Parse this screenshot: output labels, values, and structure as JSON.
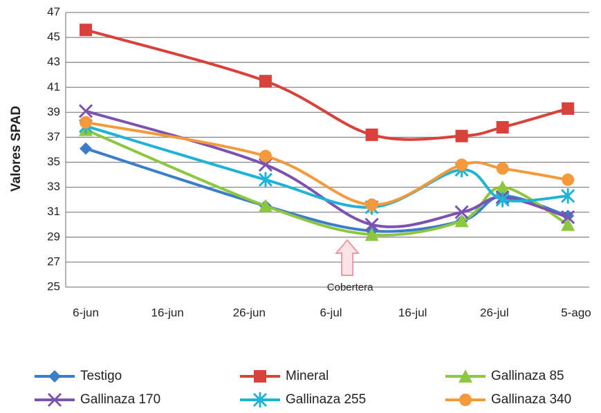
{
  "chart_data": {
    "type": "line",
    "y_label": "Valores SPAD",
    "x": [
      0,
      22,
      35,
      46,
      51,
      59
    ],
    "xlim": [
      0,
      60
    ],
    "xticks": [
      {
        "value": 0,
        "label": "6-jun"
      },
      {
        "value": 10,
        "label": "16-jun"
      },
      {
        "value": 20,
        "label": "26-jun"
      },
      {
        "value": 30,
        "label": "6-jul"
      },
      {
        "value": 40,
        "label": "16-jul"
      },
      {
        "value": 50,
        "label": "26-jul"
      },
      {
        "value": 60,
        "label": "5-ago"
      }
    ],
    "ylim": [
      25,
      47
    ],
    "yticks": [
      25,
      27,
      29,
      31,
      33,
      35,
      37,
      39,
      41,
      43,
      45,
      47
    ],
    "grid": true,
    "legend": "bottom",
    "series": [
      {
        "name": "Testigo",
        "color": "#3a7dc9",
        "marker": "diamond",
        "values": [
          36.1,
          31.5,
          29.5,
          30.3,
          32.3,
          30.7
        ]
      },
      {
        "name": "Mineral",
        "color": "#d9413a",
        "marker": "square",
        "values": [
          45.6,
          41.5,
          37.2,
          37.1,
          37.8,
          39.3
        ]
      },
      {
        "name": "Gallinaza  85",
        "color": "#8dc63f",
        "marker": "triangle",
        "values": [
          37.6,
          31.5,
          29.2,
          30.3,
          33.0,
          30.0
        ]
      },
      {
        "name": "Gallinaza 170",
        "color": "#7b52b0",
        "marker": "x",
        "values": [
          39.1,
          34.8,
          30.0,
          31.0,
          32.2,
          30.6
        ]
      },
      {
        "name": "Gallinaza  255",
        "color": "#1fb3d6",
        "marker": "star",
        "values": [
          37.9,
          33.6,
          31.4,
          34.4,
          32.0,
          32.3
        ]
      },
      {
        "name": "Gallinaza  340",
        "color": "#f59a3c",
        "marker": "circle",
        "values": [
          38.2,
          35.5,
          31.6,
          34.8,
          34.5,
          33.6
        ]
      }
    ],
    "annotation": {
      "text": "Cobertera",
      "x": 32
    }
  }
}
